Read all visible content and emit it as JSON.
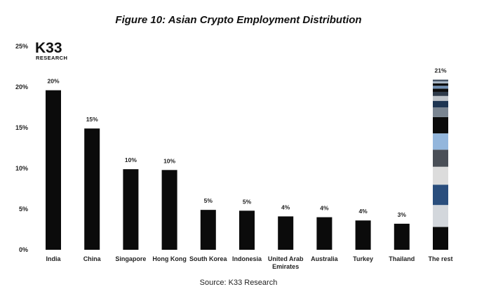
{
  "chart_data": {
    "type": "bar",
    "title": "Figure 10: Asian Crypto Employment Distribution",
    "source": "Source: K33 Research",
    "logo": {
      "main": "K33",
      "sub": "RESEARCH"
    },
    "ylim": [
      0,
      25
    ],
    "yticks": [
      {
        "value": 0,
        "label": "0%"
      },
      {
        "value": 5,
        "label": "5%"
      },
      {
        "value": 10,
        "label": "10%"
      },
      {
        "value": 15,
        "label": "15%"
      },
      {
        "value": 20,
        "label": "20%"
      },
      {
        "value": 25,
        "label": "25%"
      }
    ],
    "grid": false,
    "bars": [
      {
        "category": [
          "India"
        ],
        "value": 19.6,
        "label": "20%",
        "color": "#0b0b0b"
      },
      {
        "category": [
          "China"
        ],
        "value": 14.9,
        "label": "15%",
        "color": "#0b0b0b"
      },
      {
        "category": [
          "Singapore"
        ],
        "value": 9.9,
        "label": "10%",
        "color": "#0b0b0b"
      },
      {
        "category": [
          "Hong Kong"
        ],
        "value": 9.8,
        "label": "10%",
        "color": "#0b0b0b"
      },
      {
        "category": [
          "South Korea"
        ],
        "value": 4.9,
        "label": "5%",
        "color": "#0b0b0b"
      },
      {
        "category": [
          "Indonesia"
        ],
        "value": 4.8,
        "label": "5%",
        "color": "#0b0b0b"
      },
      {
        "category": [
          "United Arab",
          "Emirates"
        ],
        "value": 4.1,
        "label": "4%",
        "color": "#0b0b0b"
      },
      {
        "category": [
          "Australia"
        ],
        "value": 4.0,
        "label": "4%",
        "color": "#0b0b0b"
      },
      {
        "category": [
          "Turkey"
        ],
        "value": 3.6,
        "label": "4%",
        "color": "#0b0b0b"
      },
      {
        "category": [
          "Thailand"
        ],
        "value": 3.2,
        "label": "3%",
        "color": "#0b0b0b"
      }
    ],
    "stacked_bar": {
      "category": [
        "The rest"
      ],
      "label": "21%",
      "segments": [
        {
          "value": 2.8,
          "color": "#0b0b0b"
        },
        {
          "value": 2.7,
          "color": "#d3d7dc"
        },
        {
          "value": 2.5,
          "color": "#2a4e7d"
        },
        {
          "value": 2.2,
          "color": "#dcdcdc"
        },
        {
          "value": 2.1,
          "color": "#4a4f57"
        },
        {
          "value": 2.0,
          "color": "#93b6dc"
        },
        {
          "value": 2.0,
          "color": "#0b0b0b"
        },
        {
          "value": 1.2,
          "color": "#7a8591"
        },
        {
          "value": 0.8,
          "color": "#1e3552"
        },
        {
          "value": 0.6,
          "color": "#bfc4c9"
        },
        {
          "value": 0.5,
          "color": "#2f3b4a"
        },
        {
          "value": 0.4,
          "color": "#0b0b0b"
        },
        {
          "value": 0.35,
          "color": "#6f8fb3"
        },
        {
          "value": 0.3,
          "color": "#0b0b0b"
        },
        {
          "value": 0.25,
          "color": "#a7b6c6"
        },
        {
          "value": 0.2,
          "color": "#3d4a5c"
        }
      ]
    }
  }
}
